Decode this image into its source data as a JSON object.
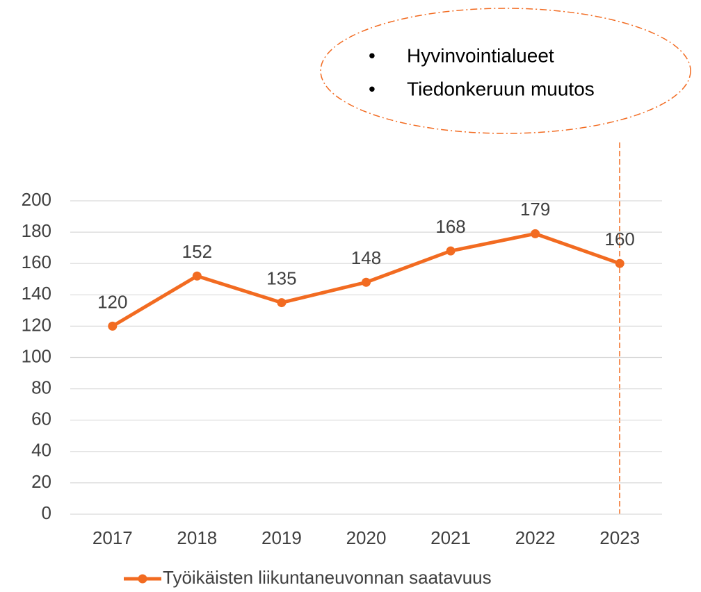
{
  "chart_data": {
    "type": "line",
    "categories": [
      "2017",
      "2018",
      "2019",
      "2020",
      "2021",
      "2022",
      "2023"
    ],
    "series": [
      {
        "name": "Työikäisten liikuntaneuvonnan saatavuus",
        "color": "#f26b21",
        "values": [
          120,
          152,
          135,
          148,
          168,
          179,
          160
        ]
      }
    ],
    "ylim": [
      0,
      200
    ],
    "yticks": [
      0,
      20,
      40,
      60,
      80,
      100,
      120,
      140,
      160,
      180,
      200
    ],
    "grid": true,
    "legend": "bottom",
    "annotations": [
      "Hyvinvointialueet",
      "Tiedonkeruun muutos"
    ]
  }
}
